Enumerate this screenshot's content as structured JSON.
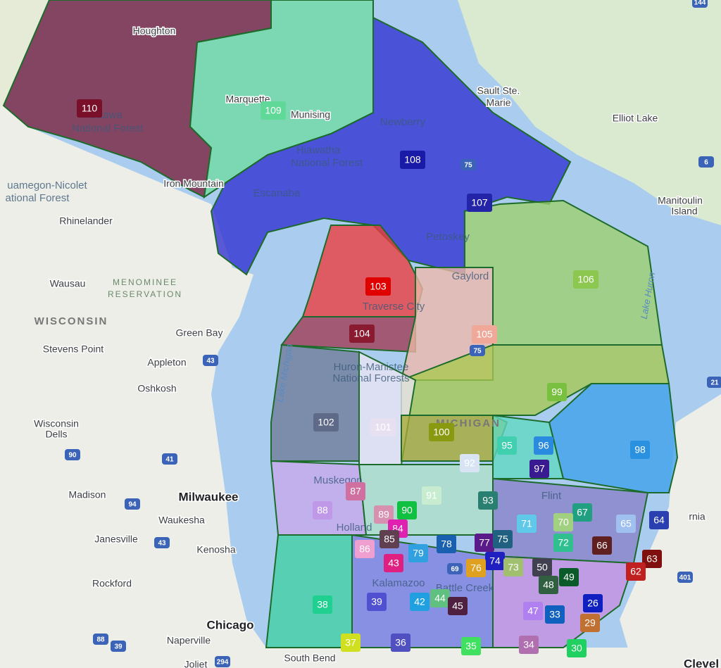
{
  "districts": [
    "110",
    "109",
    "108",
    "107",
    "103",
    "106",
    "104",
    "105",
    "99",
    "102",
    "101",
    "100",
    "95",
    "96",
    "98",
    "97",
    "92",
    "87",
    "91",
    "93",
    "88",
    "90",
    "89",
    "67",
    "70",
    "71",
    "65",
    "64",
    "84",
    "85",
    "78",
    "77",
    "75",
    "72",
    "66",
    "86",
    "79",
    "63",
    "74",
    "43",
    "76",
    "73",
    "50",
    "62",
    "48",
    "49",
    "26",
    "39",
    "42",
    "44",
    "45",
    "38",
    "47",
    "33",
    "29",
    "37",
    "36",
    "35",
    "34",
    "30"
  ],
  "places": [
    "Houghton",
    "Marquette",
    "Munising",
    "Ottawa",
    "National Forest",
    "Iron Mountain",
    "Escanaba",
    "Newberry",
    "Hiawatha",
    "National Forest",
    "Sault Ste.",
    "Marie",
    "Elliot Lake",
    "Manitoulin",
    "Island",
    "uamegon-Nicolet",
    "ational Forest",
    "Rhinelander",
    "Wausau",
    "MENOMINEE",
    "RESERVATION",
    "WISCONSIN",
    "Green Bay",
    "Stevens Point",
    "Appleton",
    "Oshkosh",
    "Wisconsin",
    "Dells",
    "Madison",
    "Milwaukee",
    "Waukesha",
    "Janesville",
    "Kenosha",
    "Rockford",
    "Chicago",
    "Naperville",
    "South Bend",
    "Joliet",
    "Gaylord",
    "Traverse City",
    "Petoskey",
    "Huron-Manistee",
    "National Forests",
    "MICHIGAN",
    "Muskegon",
    "Holland",
    "Kalamazoo",
    "Battle Creek",
    "Flint",
    "Lake Michigan",
    "Lake Huron",
    "rnia",
    "Clevel"
  ],
  "highways": [
    "43",
    "41",
    "90",
    "94",
    "43",
    "39",
    "88",
    "294",
    "75",
    "75",
    "69",
    "401",
    "6",
    "144",
    "21"
  ]
}
